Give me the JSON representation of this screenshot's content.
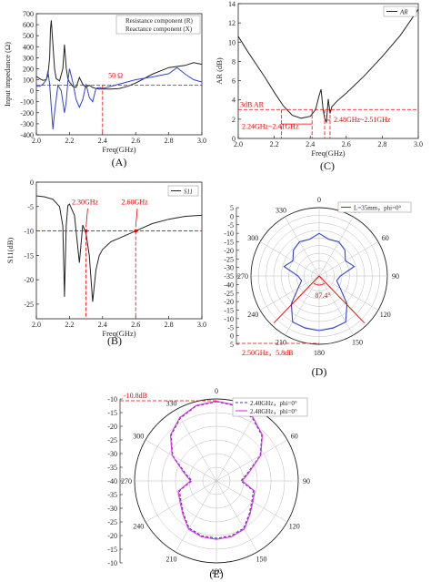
{
  "chart_data": [
    {
      "id": "A",
      "type": "line",
      "caption": "(A)",
      "xlabel": "Freq(GHz)",
      "ylabel": "Input  impedance (Ω)",
      "xlim": [
        2.0,
        3.0
      ],
      "ylim": [
        -400,
        700
      ],
      "xticks": [
        "2.0",
        "2.2",
        "2.4",
        "2.6",
        "2.8",
        "3.0"
      ],
      "yticks": [
        "-400",
        "-300",
        "-200",
        "-100",
        "0",
        "100",
        "200",
        "300",
        "400",
        "500",
        "600",
        "700"
      ],
      "series": [
        {
          "name": "Resistance component (R)",
          "color": "#222222",
          "x": [
            2.0,
            2.02,
            2.04,
            2.06,
            2.07,
            2.08,
            2.085,
            2.09,
            2.1,
            2.11,
            2.12,
            2.14,
            2.16,
            2.17,
            2.18,
            2.19,
            2.2,
            2.22,
            2.24,
            2.26,
            2.28,
            2.3,
            2.32,
            2.34,
            2.36,
            2.38,
            2.4,
            2.45,
            2.5,
            2.55,
            2.6,
            2.7,
            2.8,
            2.9,
            2.95,
            3.0
          ],
          "y": [
            130,
            110,
            95,
            100,
            140,
            300,
            560,
            640,
            420,
            200,
            110,
            90,
            200,
            420,
            210,
            110,
            80,
            40,
            30,
            120,
            60,
            30,
            50,
            30,
            20,
            15,
            15,
            15,
            20,
            40,
            70,
            150,
            210,
            230,
            255,
            240
          ]
        },
        {
          "name": "Reactance component (X)",
          "color": "#3344cc",
          "x": [
            2.0,
            2.02,
            2.04,
            2.06,
            2.07,
            2.08,
            2.09,
            2.1,
            2.11,
            2.13,
            2.15,
            2.17,
            2.18,
            2.19,
            2.2,
            2.22,
            2.24,
            2.26,
            2.28,
            2.3,
            2.32,
            2.34,
            2.36,
            2.38,
            2.4,
            2.5,
            2.6,
            2.7,
            2.8,
            2.85,
            2.9,
            2.95,
            3.0
          ],
          "y": [
            40,
            40,
            60,
            100,
            180,
            60,
            -150,
            -350,
            -200,
            50,
            0,
            -200,
            -100,
            80,
            200,
            80,
            -80,
            -150,
            -80,
            60,
            -60,
            -100,
            20,
            30,
            20,
            60,
            100,
            125,
            155,
            210,
            150,
            100,
            80
          ]
        }
      ],
      "legend": "top-right",
      "annotations": [
        {
          "text": "50 Ω",
          "y": 50,
          "x": 2.4
        }
      ]
    },
    {
      "id": "C",
      "type": "line",
      "caption": "(C)",
      "xlabel": "Freq(GHz)",
      "ylabel": "AR (dB)",
      "xlim": [
        2.0,
        3.0
      ],
      "ylim": [
        0,
        14
      ],
      "xticks": [
        "2.0",
        "2.2",
        "2.4",
        "2.6",
        "2.8",
        "3.0"
      ],
      "yticks": [
        "0",
        "2",
        "4",
        "6",
        "8",
        "10",
        "12",
        "14"
      ],
      "series": [
        {
          "name": "AR",
          "color": "#222222",
          "x": [
            2.0,
            2.05,
            2.1,
            2.15,
            2.2,
            2.25,
            2.3,
            2.35,
            2.4,
            2.43,
            2.45,
            2.46,
            2.47,
            2.48,
            2.49,
            2.5,
            2.51,
            2.52,
            2.55,
            2.6,
            2.7,
            2.8,
            2.9,
            3.0
          ],
          "y": [
            10.6,
            9.1,
            7.7,
            6.3,
            4.8,
            3.4,
            2.4,
            2.1,
            2.3,
            3.0,
            4.5,
            5.1,
            3.2,
            2.1,
            1.7,
            4.1,
            2.6,
            3.3,
            3.9,
            4.7,
            6.5,
            8.5,
            10.7,
            13.4
          ]
        }
      ],
      "legend": "top-right",
      "annotations": [
        {
          "text": "3dB AR",
          "y": 3
        },
        {
          "text": "2.24GHz~2.41GHz"
        },
        {
          "text": "2.48GHz~2.51GHz"
        }
      ]
    },
    {
      "id": "B",
      "type": "line",
      "caption": "(B)",
      "xlabel": "Freq(GHz)",
      "ylabel": "S11(dB)",
      "legend_label": "S11",
      "xlim": [
        2.0,
        3.0
      ],
      "ylim": [
        -28,
        0
      ],
      "xticks": [
        "2.0",
        "2.2",
        "2.4",
        "2.6",
        "2.8",
        "3.0"
      ],
      "yticks": [
        "0",
        "-5",
        "-10",
        "-15",
        "-20",
        "-25"
      ],
      "series": [
        {
          "name": "S11",
          "color": "#222222",
          "x": [
            2.0,
            2.05,
            2.1,
            2.14,
            2.16,
            2.17,
            2.18,
            2.19,
            2.2,
            2.23,
            2.26,
            2.28,
            2.3,
            2.32,
            2.34,
            2.36,
            2.38,
            2.4,
            2.45,
            2.5,
            2.6,
            2.7,
            2.8,
            2.9,
            3.0
          ],
          "y": [
            -2.8,
            -3.0,
            -3.5,
            -5.0,
            -9.0,
            -23.5,
            -9.0,
            -4.8,
            -4.5,
            -6.8,
            -16.5,
            -8.8,
            -10.5,
            -15.0,
            -24.5,
            -18.0,
            -15.0,
            -13.8,
            -12.2,
            -11.5,
            -10.0,
            -8.5,
            -7.6,
            -7.0,
            -6.8
          ]
        }
      ],
      "annotations": [
        {
          "text": "2.30GHz",
          "x": 2.3,
          "y": -10
        },
        {
          "text": "2.60GHz",
          "x": 2.6,
          "y": -10
        }
      ]
    },
    {
      "id": "D",
      "type": "polar",
      "caption": "(D)",
      "angle_ticks": [
        "0",
        "30",
        "60",
        "90",
        "120",
        "150",
        "180",
        "210",
        "240",
        "270",
        "300",
        "330"
      ],
      "radial_ticks": [
        "5",
        "0",
        "-5",
        "-10",
        "-15",
        "-20",
        "-25",
        "-30",
        "-35",
        "-40",
        "-25",
        "-20",
        "-15",
        "-10",
        "-5",
        "0",
        "5"
      ],
      "rlim": [
        -40,
        5
      ],
      "series": [
        {
          "name": "L=35mm，phi=0°",
          "color": "#3344cc",
          "theta": [
            0,
            15,
            30,
            45,
            60,
            75,
            90,
            105,
            120,
            135,
            150,
            165,
            180,
            195,
            210,
            225,
            240,
            255,
            270,
            285,
            300,
            315,
            330,
            345
          ],
          "r": [
            -12,
            -15,
            -14,
            -16,
            -20,
            -16,
            -26,
            -28,
            -24,
            -14,
            -5,
            -4.5,
            -4,
            -4.5,
            -5,
            -14,
            -24,
            -28,
            -26,
            -16,
            -20,
            -16,
            -14,
            -15
          ]
        }
      ],
      "legend": "top-right",
      "annotations": [
        {
          "text": "87.4°"
        },
        {
          "text": "2.50GHz，5.8dB"
        }
      ]
    },
    {
      "id": "E",
      "type": "polar",
      "caption": "(E)",
      "angle_ticks": [
        "0",
        "30",
        "60",
        "90",
        "120",
        "150",
        "180",
        "210",
        "240",
        "270",
        "300",
        "330"
      ],
      "radial_ticks": [
        "-10",
        "-15",
        "-20",
        "-25",
        "-30",
        "-35",
        "-40",
        "-35",
        "-30",
        "-25",
        "-20",
        "-15",
        "-10"
      ],
      "rlim": [
        -40,
        -10
      ],
      "series": [
        {
          "name": "2.40GHz，phi=0°",
          "color": "#5533bb",
          "dash": true,
          "theta": [
            0,
            15,
            30,
            45,
            60,
            75,
            90,
            105,
            120,
            135,
            150,
            165,
            180,
            195,
            210,
            225,
            240,
            255,
            270,
            285,
            300,
            315,
            330,
            345
          ],
          "r": [
            -11,
            -11.6,
            -13.5,
            -16.5,
            -21.5,
            -28,
            -31,
            -26,
            -25,
            -23,
            -20,
            -19.2,
            -19,
            -19.2,
            -20,
            -23,
            -25,
            -26,
            -31,
            -28,
            -21.5,
            -16.5,
            -13.5,
            -11.6
          ]
        },
        {
          "name": "2.48GHz，phi=0°",
          "color": "#dd33dd",
          "dash": false,
          "theta": [
            0,
            15,
            30,
            45,
            60,
            75,
            90,
            105,
            120,
            135,
            150,
            165,
            180,
            195,
            210,
            225,
            240,
            255,
            270,
            285,
            300,
            315,
            330,
            345
          ],
          "r": [
            -10.8,
            -11.4,
            -13.2,
            -16.2,
            -21.2,
            -27.5,
            -30.5,
            -25.5,
            -24.6,
            -22.6,
            -19.6,
            -18.8,
            -18.6,
            -18.8,
            -19.6,
            -22.6,
            -24.6,
            -25.5,
            -30.5,
            -27.5,
            -21.2,
            -16.2,
            -13.2,
            -11.4
          ]
        }
      ],
      "legend": "top-right",
      "annotations": [
        {
          "text": "-10.8dB"
        }
      ]
    }
  ]
}
